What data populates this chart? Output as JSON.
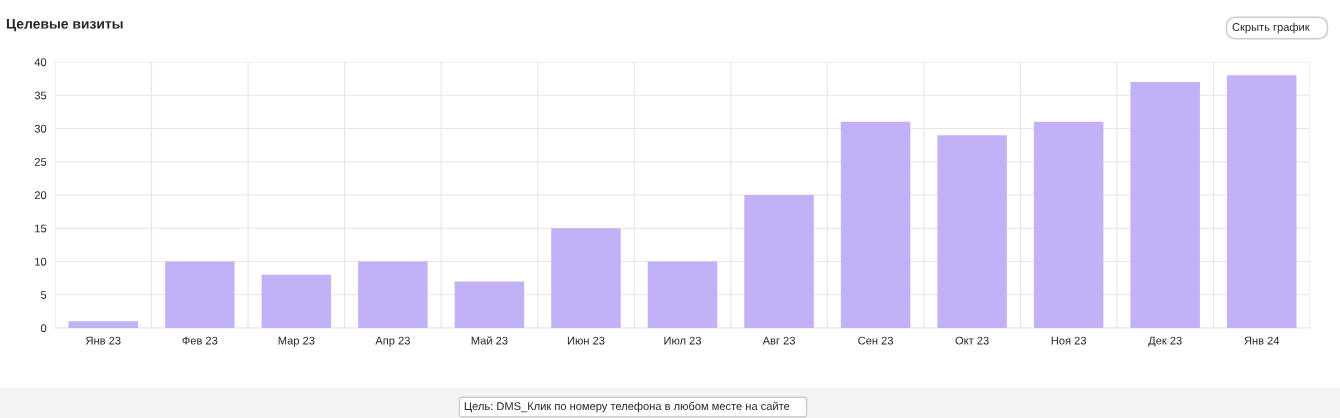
{
  "chart_data": {
    "type": "bar",
    "title": "Целевые визиты",
    "categories": [
      "Янв 23",
      "Фев 23",
      "Мар 23",
      "Апр 23",
      "Май 23",
      "Июн 23",
      "Июл 23",
      "Авг 23",
      "Сен 23",
      "Окт 23",
      "Ноя 23",
      "Дек 23",
      "Янв 24"
    ],
    "values": [
      1,
      10,
      8,
      10,
      7,
      15,
      10,
      20,
      31,
      29,
      31,
      37,
      38
    ],
    "color": "#c3b1f7",
    "ylim": [
      0,
      40
    ],
    "yticks": [
      0,
      5,
      10,
      15,
      20,
      25,
      30,
      35,
      40
    ],
    "grid": true,
    "annotations": [
      "Скрыть график",
      "Цель: DMS_Клик по номеру телефона в любом месте на сайте"
    ]
  }
}
